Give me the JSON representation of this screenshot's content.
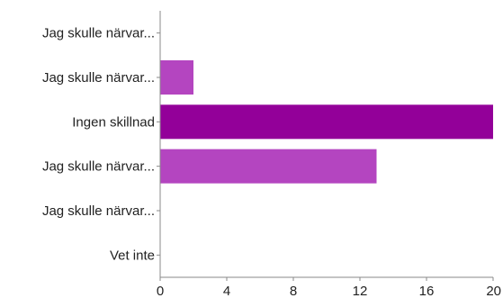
{
  "chart_data": {
    "type": "bar",
    "orientation": "horizontal",
    "title": "",
    "xlabel": "",
    "ylabel": "",
    "categories": [
      "Jag skulle närvar...",
      "Jag skulle närvar...",
      "Ingen skillnad",
      "Jag skulle närvar...",
      "Jag skulle närvar...",
      "Vet inte"
    ],
    "values": [
      0,
      2,
      20,
      13,
      0,
      0
    ],
    "colors": [
      "#b445c0",
      "#b445c0",
      "#930099",
      "#b445c0",
      "#b445c0",
      "#b445c0"
    ],
    "xlim": [
      0,
      20
    ],
    "xticks": [
      0,
      4,
      8,
      12,
      16,
      20
    ],
    "grid": false,
    "legend": "none"
  }
}
